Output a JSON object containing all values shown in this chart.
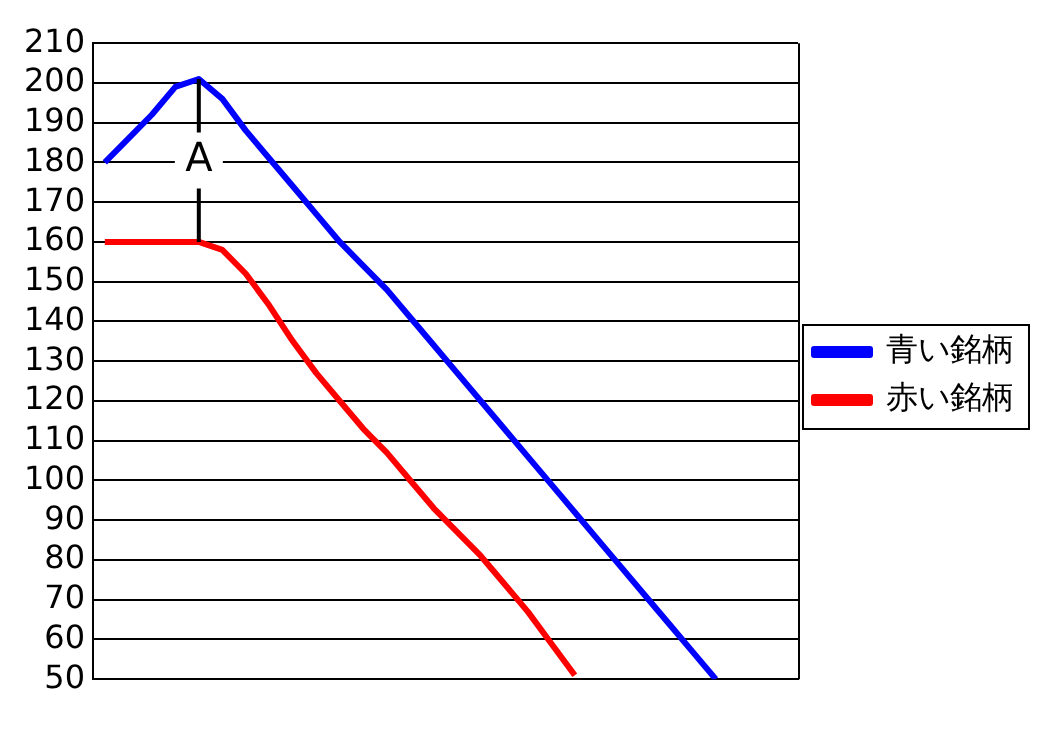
{
  "chart_data": {
    "type": "line",
    "categories": [
      null,
      null,
      null,
      null,
      null,
      null,
      null,
      null,
      null,
      null,
      null,
      null,
      null,
      null,
      null,
      null,
      null,
      null,
      null,
      null,
      null,
      null,
      null,
      null,
      null,
      null,
      null,
      null,
      null,
      null
    ],
    "series": [
      {
        "name": "青い銘柄",
        "color": "#0000ff",
        "values": [
          180,
          186,
          192,
          199,
          201,
          196,
          188,
          181,
          174,
          167,
          160,
          154,
          148,
          141,
          134,
          127,
          120,
          113,
          106,
          99,
          92,
          85,
          78,
          71,
          64,
          57,
          50,
          null,
          null,
          null
        ]
      },
      {
        "name": "赤い銘柄",
        "color": "#ff0000",
        "values": [
          160,
          160,
          160,
          160,
          160,
          158,
          152,
          144,
          135,
          127,
          120,
          113,
          107,
          100,
          93,
          87,
          81,
          74,
          67,
          59,
          51,
          null,
          null,
          null,
          null,
          null,
          null,
          null,
          null,
          null
        ]
      }
    ],
    "ylim": [
      50,
      210
    ],
    "yticks": [
      50,
      60,
      70,
      80,
      90,
      100,
      110,
      120,
      130,
      140,
      150,
      160,
      170,
      180,
      190,
      200,
      210
    ],
    "grid": "y",
    "legend": "right",
    "marker": "none",
    "line_style": "solid",
    "annotations": [
      "A"
    ]
  }
}
